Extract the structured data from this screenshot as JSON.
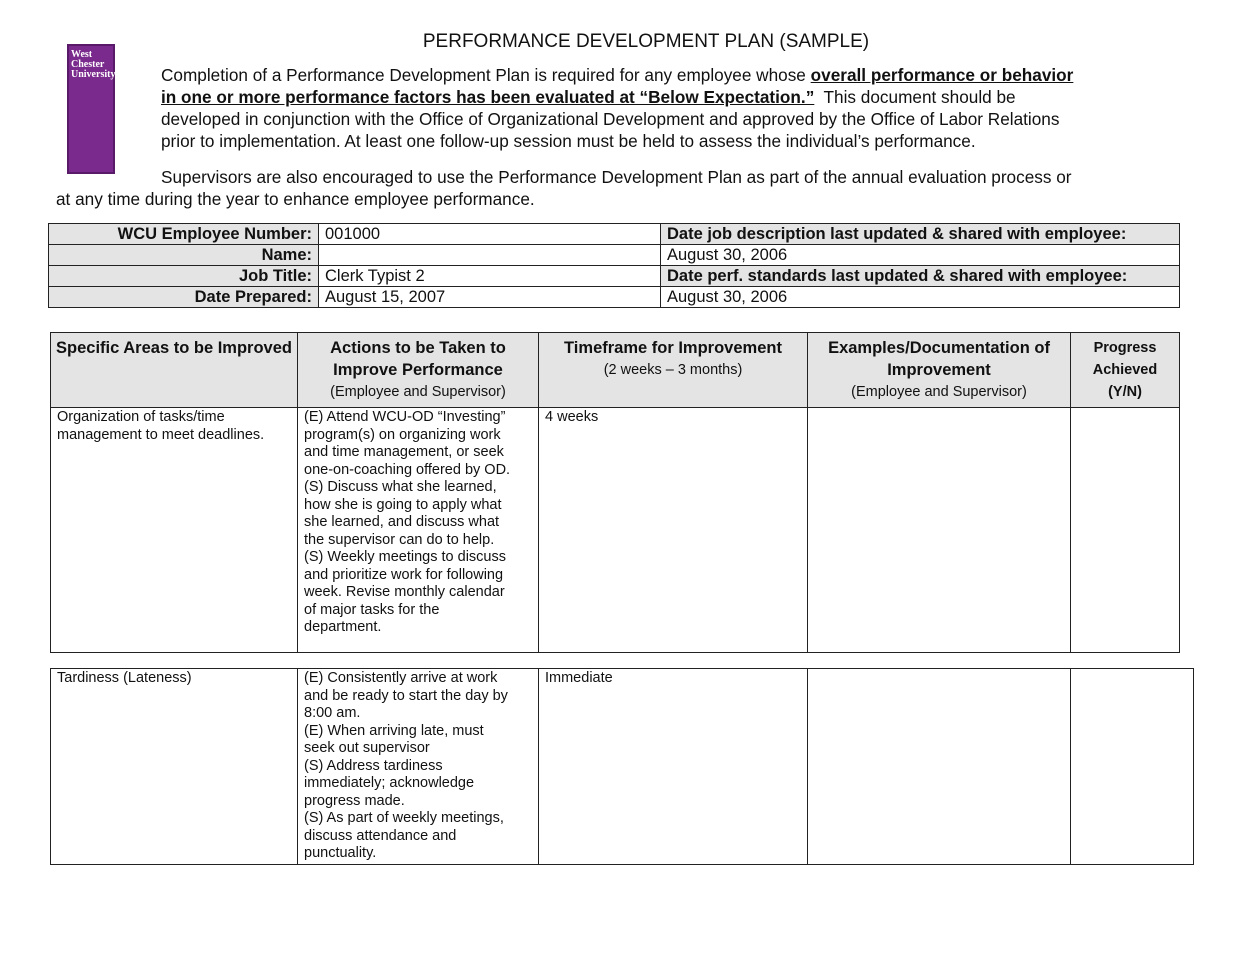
{
  "title": "PERFORMANCE DEVELOPMENT PLAN (SAMPLE)",
  "logo": {
    "text": "West Chester University",
    "color": "#7a2a8c"
  },
  "intro": {
    "l1a": "Completion of a Performance Development Plan is required for any employee whose ",
    "l1b": "overall performance or behavior",
    "l2a": "in one or more performance factors has been evaluated at “Below Expectation.”",
    "l2b": "  This document should be",
    "l3": "developed in conjunction with the Office of Organizational Development and approved by the Office of Labor Relations",
    "l4": "prior to implementation.  At least one follow-up session must be held to assess the individual’s performance.",
    "p2l1": "Supervisors are also encouraged to use the Performance Development Plan as part of the annual evaluation process or",
    "p2l2": "at any time during the year to enhance employee performance."
  },
  "info": {
    "employee_number_label": "WCU Employee Number:",
    "employee_number": "001000",
    "name_label": "Name:",
    "name": "",
    "job_title_label": "Job Title:",
    "job_title": "Clerk Typist 2",
    "date_prepared_label": "Date Prepared:",
    "date_prepared": "August 15, 2007",
    "job_desc_label": "Date job description last updated & shared with employee:",
    "job_desc_date": "August 30, 2006",
    "perf_std_label": "Date perf. standards last updated & shared with employee:",
    "perf_std_date": "August 30, 2006"
  },
  "headers": {
    "c1": "Specific Areas to be Improved",
    "c2": "Actions to be Taken to Improve Performance",
    "c2sub": "(Employee and Supervisor)",
    "c3": "Timeframe for Improvement",
    "c3sub": "(2 weeks – 3 months)",
    "c4": "Examples/Documentation of Improvement",
    "c4sub": "(Employee and Supervisor)",
    "c5": "Progress Achieved (Y/N)"
  },
  "rows": [
    {
      "area": "Organization of tasks/time\nmanagement to meet deadlines.",
      "actions": "(E)  Attend WCU-OD “Investing”\nprogram(s) on organizing work\nand time management, or seek\none-on-coaching offered by OD.\n(S) Discuss what she learned,\nhow she is going to apply what\nshe learned, and discuss what\nthe supervisor can do to help.\n(S) Weekly meetings to discuss\nand prioritize work for following\nweek. Revise monthly calendar\nof major tasks for the\ndepartment.",
      "timeframe": "4 weeks",
      "examples": "",
      "progress": ""
    },
    {
      "area": "Tardiness (Lateness)",
      "actions": "(E) Consistently arrive at work\nand be ready to start the day by\n8:00 am.\n(E) When arriving late, must\nseek out supervisor\n(S) Address tardiness\nimmediately; acknowledge\nprogress made.\n(S) As part of weekly meetings,\ndiscuss attendance and\npunctuality.",
      "timeframe": "Immediate",
      "examples": "",
      "progress": ""
    }
  ]
}
